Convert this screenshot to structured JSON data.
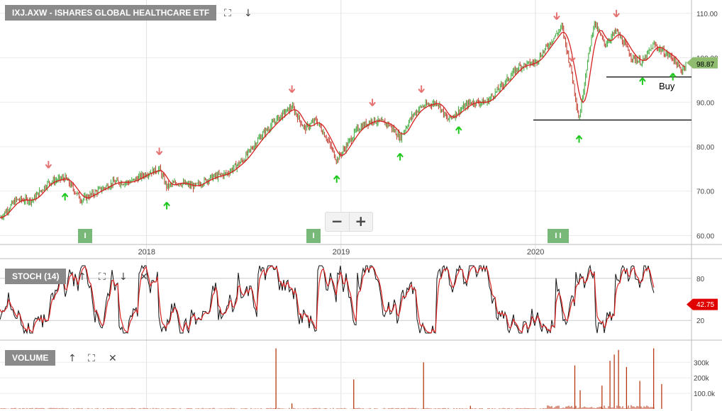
{
  "header": {
    "symbol_title": "IXJ.AXW - ISHARES GLOBAL HEALTHCARE ETF",
    "buy_label": "Buy",
    "icons": [
      "fullscreen-icon",
      "arrow-down-icon"
    ]
  },
  "zoom": {
    "minus": "−",
    "plus": "+"
  },
  "stoch_panel": {
    "title": "STOCH (14)",
    "last_value": "42.75",
    "icons": [
      "arrow-up-icon",
      "fullscreen-icon",
      "arrow-down-icon",
      "close-icon"
    ]
  },
  "volume_panel": {
    "title": "VOLUME",
    "icons": [
      "arrow-up-icon",
      "fullscreen-icon",
      "close-icon"
    ]
  },
  "price_panel": {
    "last_value": "98.87"
  },
  "markers": {
    "i1": "I",
    "i2": "I",
    "i3": "I I"
  },
  "colors": {
    "up": "#3aa83a",
    "down": "#c0392b",
    "ma": "#d62020",
    "stoch_k": "#111111",
    "stoch_d": "#d62020",
    "volume": "#b22a00",
    "buy_arrow": "#1ec81e",
    "sell_arrow": "#e57373",
    "last_price_tag": "#8fbc6f",
    "stoch_tag": "#e00000"
  },
  "chart_data": [
    {
      "type": "line",
      "name": "price",
      "x": [
        "2017-04-01",
        "2017-05-01",
        "2017-06-01",
        "2017-07-01",
        "2017-08-01",
        "2017-09-01",
        "2017-10-01",
        "2017-11-01",
        "2017-12-01",
        "2018-01-01",
        "2018-01-25",
        "2018-02-08",
        "2018-03-01",
        "2018-04-01",
        "2018-05-01",
        "2018-06-01",
        "2018-07-01",
        "2018-08-01",
        "2018-09-01",
        "2018-10-01",
        "2018-10-25",
        "2018-11-15",
        "2018-12-05",
        "2018-12-24",
        "2019-01-10",
        "2019-02-01",
        "2019-03-01",
        "2019-04-01",
        "2019-04-22",
        "2019-05-15",
        "2019-06-01",
        "2019-07-01",
        "2019-07-20",
        "2019-08-10",
        "2019-09-01",
        "2019-10-01",
        "2019-11-01",
        "2019-12-01",
        "2020-01-01",
        "2020-02-01",
        "2020-02-20",
        "2020-03-10",
        "2020-03-23",
        "2020-04-05",
        "2020-04-20",
        "2020-05-10",
        "2020-06-01",
        "2020-07-01",
        "2020-07-20",
        "2020-08-10",
        "2020-09-01",
        "2020-09-15",
        "2020-10-01",
        "2020-10-10"
      ],
      "y": [
        64,
        68,
        68,
        72,
        73,
        68,
        70,
        72,
        72,
        74,
        75,
        71,
        72,
        71,
        73,
        74,
        77,
        82,
        86,
        89,
        84,
        86,
        82,
        77,
        80,
        84,
        86,
        85,
        82,
        87,
        89,
        90,
        86,
        88,
        90,
        90,
        94,
        98,
        99,
        104,
        107,
        96,
        86,
        97,
        108,
        103,
        106,
        100,
        99,
        103,
        101,
        100,
        97,
        98.87
      ],
      "ylim": [
        58,
        113
      ],
      "yticks": [
        60,
        70,
        80,
        90,
        100,
        110
      ],
      "xticks": [
        "2018",
        "2019",
        "2020"
      ],
      "last": 98.87,
      "levels": [
        {
          "y": 96
        },
        {
          "y": 86
        }
      ],
      "buy_arrows": [
        "2017-08-01",
        "2018-02-08",
        "2018-12-24",
        "2019-04-22",
        "2019-08-10",
        "2020-03-23",
        "2020-07-20",
        "2020-09-15"
      ],
      "sell_arrows": [
        "2017-07-01",
        "2018-01-25",
        "2018-10-01",
        "2019-03-01",
        "2019-06-01",
        "2020-02-10",
        "2020-03-10",
        "2020-06-01"
      ]
    },
    {
      "type": "line",
      "name": "STOCH (14)",
      "ylim": [
        0,
        100
      ],
      "yticks": [
        20,
        80
      ],
      "last": 42.75
    },
    {
      "type": "bar",
      "name": "VOLUME",
      "ylim": [
        0,
        420000
      ],
      "yticks": [
        "100.0k",
        "200k",
        "300k"
      ],
      "spikes": [
        {
          "x": "2018-09-01",
          "v": 390000
        },
        {
          "x": "2018-10-01",
          "v": 35000
        },
        {
          "x": "2019-01-25",
          "v": 190000
        },
        {
          "x": "2019-06-05",
          "v": 300000
        },
        {
          "x": "2019-09-01",
          "v": 20000
        },
        {
          "x": "2020-03-15",
          "v": 280000
        },
        {
          "x": "2020-03-25",
          "v": 120000
        },
        {
          "x": "2020-05-05",
          "v": 150000
        },
        {
          "x": "2020-05-20",
          "v": 310000
        },
        {
          "x": "2020-05-28",
          "v": 350000
        },
        {
          "x": "2020-06-05",
          "v": 380000
        },
        {
          "x": "2020-06-20",
          "v": 270000
        },
        {
          "x": "2020-07-15",
          "v": 180000
        },
        {
          "x": "2020-08-10",
          "v": 390000
        },
        {
          "x": "2020-08-25",
          "v": 160000
        }
      ]
    }
  ]
}
